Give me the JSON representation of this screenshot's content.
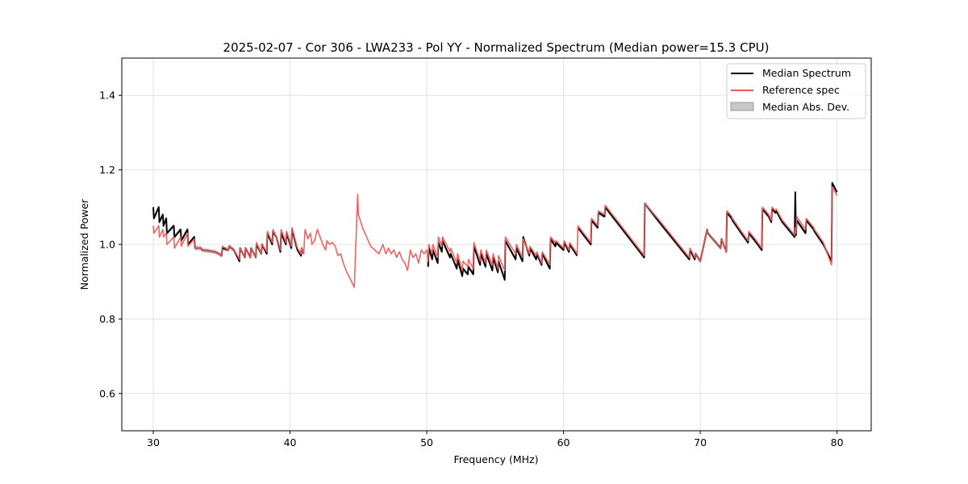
{
  "chart_data": {
    "type": "line",
    "title": "2025-02-07 - Cor 306 - LWA233 - Pol YY - Normalized Spectrum (Median power=15.3 CPU)",
    "xlabel": "Frequency (MHz)",
    "ylabel": "Normalized Power",
    "xlim": [
      27.7,
      82.5
    ],
    "ylim": [
      0.5,
      1.5
    ],
    "xticks": [
      30,
      40,
      50,
      60,
      70,
      80
    ],
    "yticks": [
      0.6,
      0.8,
      1.0,
      1.2,
      1.4
    ],
    "xtick_labels": [
      "30",
      "40",
      "50",
      "60",
      "70",
      "80"
    ],
    "ytick_labels": [
      "0.6",
      "0.8",
      "1.0",
      "1.2",
      "1.4"
    ],
    "grid": true,
    "legend_position": "top-right",
    "colors": {
      "median": "#000000",
      "reference": "#f05a5a",
      "mad_fill": "#c8c8c8",
      "grid": "#e3e3e3"
    },
    "series": [
      {
        "name": "Median Spectrum",
        "style": "line",
        "segments": [
          {
            "x": [
              30.0,
              30.05,
              30.4,
              30.45,
              30.7,
              30.75,
              30.95,
              31.0,
              31.5,
              31.55,
              32.0,
              32.05,
              32.5,
              32.55,
              33.0,
              33.05,
              33.5,
              33.55,
              34.0,
              34.5,
              34.8,
              35.0,
              35.05,
              35.5,
              35.55,
              35.9,
              36.3,
              36.35,
              36.7,
              36.75,
              37.1,
              37.15,
              37.5,
              37.55,
              37.9,
              37.95,
              38.3,
              38.35,
              38.7,
              38.75,
              39.0,
              39.3,
              39.35,
              39.7,
              39.75,
              40.1,
              40.15,
              40.5,
              40.55,
              40.8,
              40.85,
              41.0
            ],
            "y": [
              1.1,
              1.07,
              1.1,
              1.06,
              1.08,
              1.05,
              1.07,
              1.03,
              1.05,
              1.02,
              1.04,
              1.01,
              1.04,
              1.0,
              1.02,
              0.99,
              0.99,
              0.985,
              0.983,
              0.98,
              0.975,
              0.97,
              0.99,
              0.985,
              0.995,
              0.985,
              0.955,
              0.99,
              0.965,
              0.99,
              0.965,
              0.99,
              0.965,
              1.0,
              0.975,
              1.0,
              0.975,
              1.03,
              1.0,
              1.035,
              1.02,
              0.98,
              1.03,
              1.0,
              1.03,
              0.99,
              1.04,
              0.99,
              0.985,
              0.97,
              0.99,
              0.975
            ]
          },
          {
            "x": [
              50.1,
              50.15,
              50.4,
              50.45,
              50.8,
              50.85,
              51.1,
              51.15,
              51.7,
              51.75,
              52.2,
              52.25,
              52.6,
              52.65,
              53.0,
              53.05,
              53.4,
              53.45,
              53.9,
              53.95,
              54.3,
              54.35,
              54.8,
              54.85,
              55.2,
              55.25,
              55.7,
              55.75,
              56.5,
              56.55,
              57.0,
              57.05,
              57.5,
              57.55,
              58.0,
              58.05,
              58.4,
              58.45,
              59.0,
              59.05,
              59.4,
              59.45,
              60.0,
              60.05,
              60.4,
              60.45,
              61.0
            ],
            "y": [
              0.94,
              0.99,
              0.96,
              0.985,
              0.95,
              1.005,
              0.98,
              1.01,
              0.965,
              0.975,
              0.935,
              0.96,
              0.915,
              0.935,
              0.92,
              0.94,
              0.92,
              0.995,
              0.945,
              0.975,
              0.94,
              0.975,
              0.93,
              0.965,
              0.925,
              0.955,
              0.905,
              1.01,
              0.96,
              0.99,
              0.955,
              1.02,
              0.97,
              0.99,
              0.96,
              0.975,
              0.945,
              0.975,
              0.935,
              1.015,
              0.995,
              1.005,
              0.985,
              1.005,
              0.98,
              1.0,
              0.97
            ]
          },
          {
            "x": [
              61.05,
              62.0,
              62.05,
              62.5,
              62.55,
              63.0,
              63.05,
              65.9,
              65.95,
              67.0,
              69.2,
              69.25,
              69.6,
              69.65,
              70.0,
              70.5,
              70.55,
              71.5,
              71.55,
              71.9,
              71.95,
              72.3,
              72.35,
              73.0,
              73.5,
              73.55,
              74.0,
              74.5,
              74.55,
              75.0,
              75.2,
              75.25,
              75.5,
              75.55,
              76.0,
              76.9,
              76.95,
              77.0,
              77.05,
              77.7,
              77.75,
              78.3,
              78.35,
              79.0,
              79.6,
              79.65,
              80.0
            ],
            "y": [
              1.045,
              1.0,
              1.065,
              1.045,
              1.085,
              1.075,
              1.1,
              0.965,
              1.11,
              1.06,
              0.96,
              0.985,
              0.96,
              0.975,
              0.955,
              1.04,
              1.03,
              0.99,
              1.015,
              0.98,
              1.085,
              1.07,
              1.065,
              1.03,
              1.005,
              1.03,
              1.01,
              0.985,
              1.095,
              1.075,
              1.06,
              1.095,
              1.085,
              1.09,
              1.06,
              1.02,
              1.14,
              1.025,
              1.065,
              1.03,
              1.065,
              1.04,
              1.035,
              1.0,
              0.955,
              1.165,
              1.14
            ]
          }
        ]
      },
      {
        "name": "Reference spec",
        "style": "line",
        "segments": [
          {
            "x": [
              30.0,
              30.05,
              30.4,
              30.45,
              30.7,
              30.75,
              30.95,
              31.0,
              31.5,
              31.55,
              32.0,
              32.05,
              32.5,
              32.55,
              33.0,
              33.05,
              33.5,
              33.55,
              34.0,
              34.5,
              34.8,
              35.0,
              35.05,
              35.5,
              35.55,
              35.9,
              36.3,
              36.35,
              36.7,
              36.75,
              37.1,
              37.15,
              37.5,
              37.55,
              37.9,
              37.95,
              38.3,
              38.35,
              38.7,
              38.75,
              39.0,
              39.3,
              39.35,
              39.7,
              39.75,
              40.1,
              40.15,
              40.5,
              40.55,
              40.8,
              40.85,
              41.0,
              41.1,
              41.3,
              41.5,
              41.6,
              41.8,
              42.0,
              42.2,
              42.4,
              42.6,
              42.7,
              42.9,
              43.1,
              43.3,
              43.5,
              43.7,
              43.9,
              44.1,
              44.3,
              44.5,
              44.7,
              44.95,
              45.0,
              45.05,
              45.3,
              45.6,
              45.9,
              46.2,
              46.5,
              46.8,
              47.0,
              47.2,
              47.4,
              47.6,
              47.8,
              48.0,
              48.2,
              48.4,
              48.6,
              48.8,
              49.0,
              49.2,
              49.4,
              49.6,
              49.8,
              50.0,
              50.1,
              50.15,
              50.4,
              50.45,
              50.8,
              50.85,
              51.1,
              51.15,
              51.7,
              51.75,
              52.2,
              52.25,
              52.6,
              52.65,
              53.0,
              53.05,
              53.4,
              53.45,
              53.9,
              53.95,
              54.3,
              54.35,
              54.8,
              54.85,
              55.2,
              55.25,
              55.7,
              55.75,
              56.5,
              56.55,
              57.0,
              57.05,
              57.5,
              57.55,
              58.0,
              58.05,
              58.4,
              58.45,
              59.0,
              59.05,
              59.4,
              59.45,
              60.0,
              60.05,
              60.4,
              60.45,
              61.0,
              61.05,
              62.0,
              62.05,
              62.5,
              62.55,
              63.0,
              63.05,
              65.9,
              65.95,
              67.0,
              69.2,
              69.25,
              69.6,
              69.65,
              70.0,
              70.5,
              70.55,
              71.5,
              71.55,
              71.9,
              71.95,
              72.3,
              72.35,
              73.0,
              73.5,
              73.55,
              74.0,
              74.5,
              74.55,
              75.0,
              75.2,
              75.25,
              75.5,
              75.55,
              76.0,
              76.9,
              76.95,
              77.0,
              77.05,
              77.7,
              77.75,
              78.3,
              78.35,
              79.0,
              79.6,
              79.65,
              80.0
            ],
            "y": [
              1.05,
              1.03,
              1.05,
              1.02,
              1.04,
              1.02,
              1.03,
              1.0,
              1.02,
              0.99,
              1.02,
              0.995,
              1.03,
              0.995,
              1.015,
              0.99,
              0.99,
              0.985,
              0.983,
              0.98,
              0.975,
              0.97,
              0.995,
              0.985,
              0.995,
              0.985,
              0.96,
              0.99,
              0.965,
              0.99,
              0.965,
              0.99,
              0.965,
              1.005,
              0.975,
              1.0,
              0.98,
              1.035,
              1.005,
              1.04,
              1.02,
              0.985,
              1.04,
              1.005,
              1.035,
              0.995,
              1.045,
              0.995,
              0.99,
              0.975,
              0.99,
              0.975,
              1.04,
              1.015,
              1.03,
              1.0,
              1.01,
              1.04,
              1.02,
              1.0,
              0.985,
              1.01,
              1.0,
              1.005,
              0.995,
              0.97,
              0.975,
              0.95,
              0.93,
              0.915,
              0.9,
              0.885,
              1.135,
              1.08,
              1.075,
              1.045,
              1.02,
              0.995,
              0.985,
              0.975,
              1.0,
              0.975,
              0.99,
              0.975,
              0.985,
              0.965,
              0.98,
              0.96,
              0.95,
              0.93,
              0.985,
              0.965,
              0.975,
              0.95,
              0.985,
              0.975,
              0.985,
              0.955,
              1.0,
              0.975,
              1.0,
              0.965,
              1.02,
              0.995,
              1.02,
              0.98,
              0.99,
              0.95,
              0.975,
              0.93,
              0.955,
              0.94,
              0.96,
              0.935,
              1.005,
              0.955,
              0.985,
              0.95,
              0.985,
              0.945,
              0.975,
              0.935,
              0.97,
              0.93,
              1.02,
              0.975,
              1.0,
              0.965,
              1.015,
              0.975,
              0.995,
              0.97,
              0.98,
              0.95,
              0.98,
              0.945,
              1.02,
              1.005,
              1.01,
              0.99,
              1.01,
              0.985,
              1.005,
              0.975,
              1.05,
              1.005,
              1.07,
              1.05,
              1.09,
              1.08,
              1.105,
              0.97,
              1.11,
              1.065,
              0.965,
              0.99,
              0.965,
              0.975,
              0.955,
              1.04,
              1.03,
              0.99,
              1.015,
              0.98,
              1.09,
              1.075,
              1.07,
              1.035,
              1.01,
              1.035,
              1.015,
              0.99,
              1.1,
              1.08,
              1.065,
              1.1,
              1.09,
              1.095,
              1.065,
              1.025,
              1.045,
              1.03,
              1.075,
              1.04,
              1.07,
              1.045,
              1.04,
              1.005,
              0.945,
              1.155,
              1.13
            ]
          }
        ]
      },
      {
        "name": "Median Abs. Dev.",
        "style": "band",
        "band_half_width": 0.006
      }
    ]
  }
}
